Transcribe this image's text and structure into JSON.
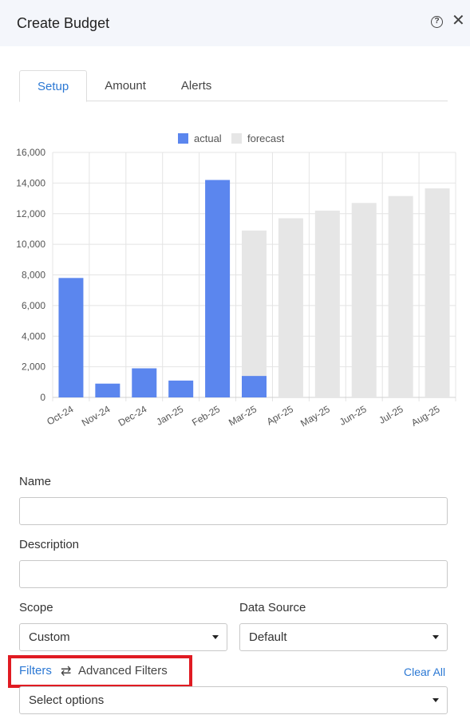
{
  "header": {
    "title": "Create Budget",
    "help_icon": "help-circle-icon",
    "help_glyph": "?",
    "close_glyph": "✕"
  },
  "tabs": [
    {
      "label": "Setup",
      "active": true
    },
    {
      "label": "Amount",
      "active": false
    },
    {
      "label": "Alerts",
      "active": false
    }
  ],
  "chart_data": {
    "type": "bar",
    "categories": [
      "Oct-24",
      "Nov-24",
      "Dec-24",
      "Jan-25",
      "Feb-25",
      "Mar-25",
      "Apr-25",
      "May-25",
      "Jun-25",
      "Jul-25",
      "Aug-25"
    ],
    "series": [
      {
        "name": "actual",
        "color": "#5b86ee",
        "values": [
          7800,
          900,
          1900,
          1100,
          14200,
          1400,
          null,
          null,
          null,
          null,
          null
        ]
      },
      {
        "name": "forecast",
        "color": "#e6e6e6",
        "values": [
          null,
          null,
          null,
          null,
          null,
          10900,
          11700,
          12200,
          12700,
          13150,
          13650
        ]
      }
    ],
    "ylim": [
      0,
      16000
    ],
    "yticks": [
      0,
      2000,
      4000,
      6000,
      8000,
      10000,
      12000,
      14000,
      16000
    ],
    "ytick_labels": [
      "0",
      "2,000",
      "4,000",
      "6,000",
      "8,000",
      "10,000",
      "12,000",
      "14,000",
      "16,000"
    ],
    "grid": true,
    "legend": "top-center",
    "stacked_overlay": true
  },
  "form": {
    "name_label": "Name",
    "name_value": "",
    "description_label": "Description",
    "description_value": "",
    "scope_label": "Scope",
    "scope_value": "Custom",
    "data_source_label": "Data Source",
    "data_source_value": "Default",
    "filters_label": "Filters",
    "swap_glyph": "⇄",
    "advanced_filters_label": "Advanced Filters",
    "clear_all_label": "Clear All",
    "filters_placeholder": "Select options"
  },
  "colors": {
    "accent": "#2b78d4",
    "highlight_box": "#e01b22"
  }
}
